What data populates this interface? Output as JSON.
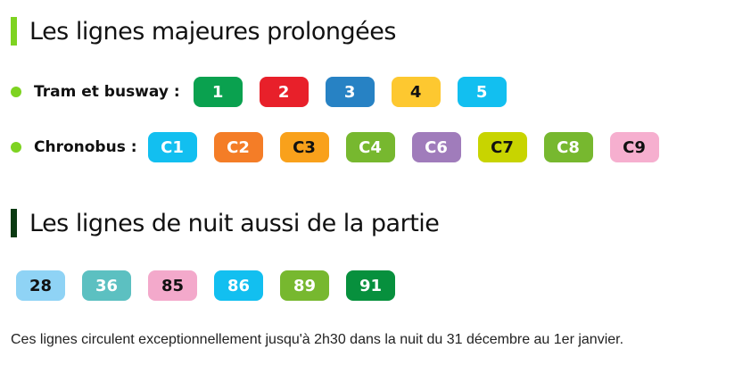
{
  "section1": {
    "title": "Les lignes majeures prolongées",
    "accent": "#7ed321",
    "tram": {
      "label": "Tram et busway :",
      "lines": [
        {
          "n": "1",
          "bg": "#0aa14f",
          "fg": "#fff"
        },
        {
          "n": "2",
          "bg": "#e8202a",
          "fg": "#fff"
        },
        {
          "n": "3",
          "bg": "#2782c4",
          "fg": "#fff"
        },
        {
          "n": "4",
          "bg": "#fdc830",
          "fg": "#111"
        },
        {
          "n": "5",
          "bg": "#12bff0",
          "fg": "#fff"
        }
      ]
    },
    "chrono": {
      "label": "Chronobus :",
      "lines": [
        {
          "n": "C1",
          "bg": "#12bff0",
          "fg": "#fff"
        },
        {
          "n": "C2",
          "bg": "#f47d27",
          "fg": "#fff"
        },
        {
          "n": "C3",
          "bg": "#f9a11b",
          "fg": "#111"
        },
        {
          "n": "C4",
          "bg": "#77b82f",
          "fg": "#fff"
        },
        {
          "n": "C6",
          "bg": "#a07cbb",
          "fg": "#fff"
        },
        {
          "n": "C7",
          "bg": "#c8d400",
          "fg": "#111"
        },
        {
          "n": "C8",
          "bg": "#77b82f",
          "fg": "#fff"
        },
        {
          "n": "C9",
          "bg": "#f6afcf",
          "fg": "#111"
        }
      ]
    }
  },
  "section2": {
    "title": "Les lignes de nuit aussi de la partie",
    "accent": "#0b3a12",
    "lines": [
      {
        "n": "28",
        "bg": "#8fd3f5",
        "fg": "#111"
      },
      {
        "n": "36",
        "bg": "#5cc0c1",
        "fg": "#fff"
      },
      {
        "n": "85",
        "bg": "#f3a9cb",
        "fg": "#111"
      },
      {
        "n": "86",
        "bg": "#12bff0",
        "fg": "#fff"
      },
      {
        "n": "89",
        "bg": "#77b82f",
        "fg": "#fff"
      },
      {
        "n": "91",
        "bg": "#07903d",
        "fg": "#fff"
      }
    ],
    "note": "Ces lignes circulent exceptionnellement jusqu'à 2h30 dans la nuit du 31 décembre au 1er janvier."
  }
}
